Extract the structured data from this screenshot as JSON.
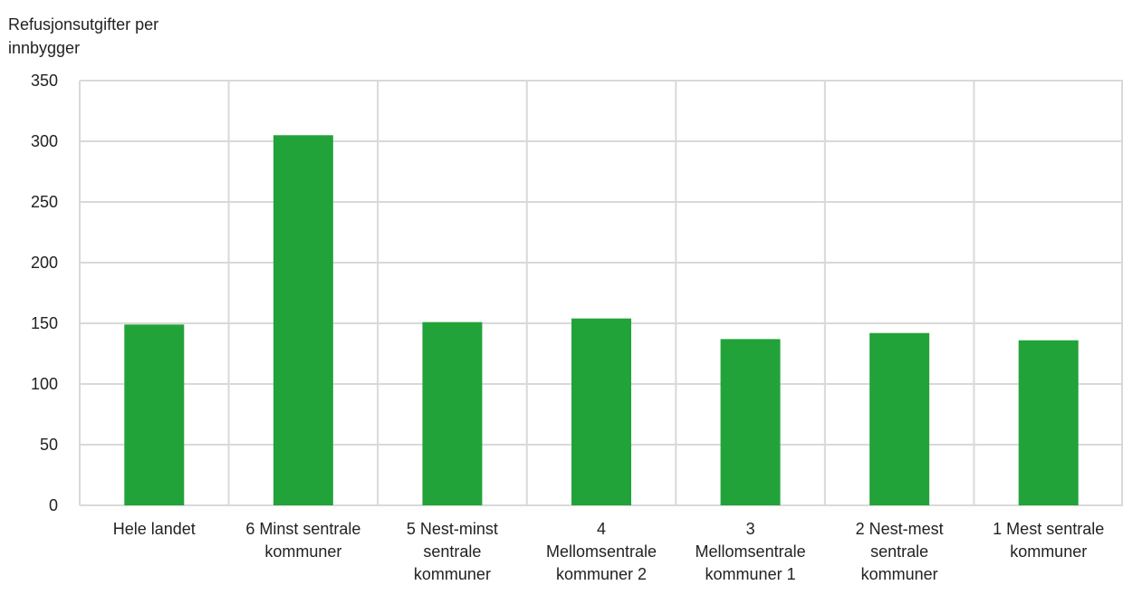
{
  "chart_data": {
    "type": "bar",
    "ylabel": "Refusjonsutgifter per innbygger",
    "ylim": [
      0,
      350
    ],
    "yticks": [
      0,
      50,
      100,
      150,
      200,
      250,
      300,
      350
    ],
    "grid": true,
    "bar_color": "#22a33a",
    "categories": [
      "Hele landet",
      "6 Minst sentrale kommuner",
      "5 Nest-minst sentrale kommuner",
      "4 Mellomsentrale kommuner 2",
      "3 Mellomsentrale kommuner 1",
      "2 Nest-mest sentrale kommuner",
      "1 Mest sentrale kommuner"
    ],
    "category_lines": [
      [
        "Hele landet"
      ],
      [
        "6 Minst sentrale",
        "kommuner"
      ],
      [
        "5 Nest-minst",
        "sentrale",
        "kommuner"
      ],
      [
        "4",
        "Mellomsentrale",
        "kommuner 2"
      ],
      [
        "3",
        "Mellomsentrale",
        "kommuner 1"
      ],
      [
        "2 Nest-mest",
        "sentrale",
        "kommuner"
      ],
      [
        "1 Mest sentrale",
        "kommuner"
      ]
    ],
    "values": [
      149,
      305,
      151,
      154,
      137,
      142,
      136
    ]
  }
}
